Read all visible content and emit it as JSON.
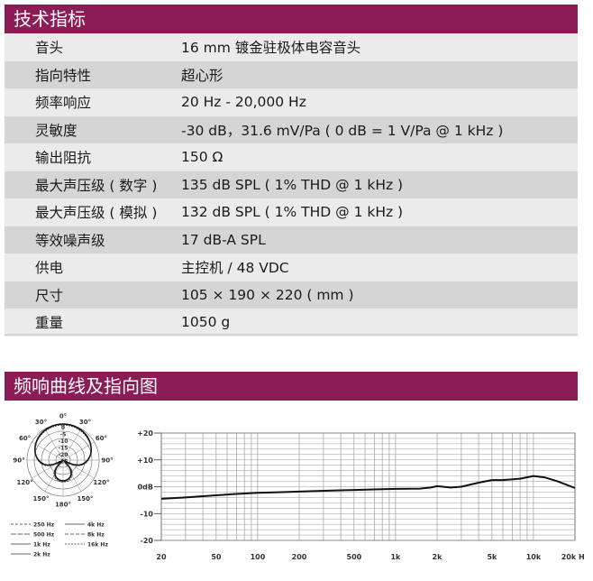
{
  "sections": {
    "specs_title": "技术指标",
    "charts_title": "频响曲线及指向图"
  },
  "specs": [
    {
      "label": "音头",
      "value": "16 mm 镀金驻极体电容音头"
    },
    {
      "label": "指向特性",
      "value": "超心形"
    },
    {
      "label": "频率响应",
      "value": "20 Hz - 20,000 Hz"
    },
    {
      "label": "灵敏度",
      "value": "-30 dB，31.6 mV/Pa ( 0 dB = 1 V/Pa @ 1 kHz )"
    },
    {
      "label": "输出阻抗",
      "value": "150 Ω"
    },
    {
      "label": "最大声压级 ( 数字 )",
      "value": "135 dB SPL ( 1% THD @ 1 kHz )"
    },
    {
      "label": "最大声压级 ( 模拟 )",
      "value": "132 dB SPL ( 1% THD @ 1 kHz )"
    },
    {
      "label": "等效噪声级",
      "value": "17 dB-A SPL"
    },
    {
      "label": "供电",
      "value": "主控机 / 48 VDC"
    },
    {
      "label": "尺寸",
      "value": "105 × 190 × 220 ( mm )"
    },
    {
      "label": "重量",
      "value": "1050 g"
    }
  ],
  "chart_data": [
    {
      "type": "line",
      "x_scale": "log",
      "x_ticks": [
        "20",
        "50",
        "100",
        "200",
        "500",
        "1k",
        "2k",
        "5k",
        "10k",
        "20k Hz"
      ],
      "x_tick_values": [
        20,
        50,
        100,
        200,
        500,
        1000,
        2000,
        5000,
        10000,
        20000
      ],
      "y_ticks": [
        "+20",
        "+10",
        "0dB",
        "-10",
        "-20"
      ],
      "y_tick_values": [
        20,
        10,
        0,
        -10,
        -20
      ],
      "ylim": [
        -20,
        20
      ],
      "grid": true,
      "series": [
        {
          "x": [
            20,
            30,
            50,
            70,
            100,
            150,
            200,
            300,
            500,
            700,
            1000,
            1500,
            1800,
            2000,
            2500,
            3000,
            4000,
            5000,
            6000,
            8000,
            10000,
            12000,
            15000,
            20000
          ],
          "y": [
            -4.5,
            -4,
            -3.2,
            -2.7,
            -2.3,
            -2,
            -1.8,
            -1.5,
            -1.2,
            -1,
            -0.8,
            -0.7,
            -0.3,
            0.2,
            -0.3,
            0,
            1.5,
            2.5,
            2.5,
            3,
            4,
            3.5,
            2,
            -0.5
          ]
        }
      ]
    },
    {
      "type": "polar",
      "angle_labels": [
        "0°",
        "30°",
        "30°",
        "60°",
        "60°",
        "90°",
        "90°",
        "120°",
        "120°",
        "150°",
        "150°",
        "180°"
      ],
      "radial_labels": [
        "0",
        "-5",
        "-10",
        "-15",
        "-20",
        "-25"
      ],
      "legend": [
        "250 Hz",
        "4k Hz",
        "500 Hz",
        "8k Hz",
        "1k Hz",
        "16k Hz",
        "2k Hz"
      ]
    }
  ]
}
